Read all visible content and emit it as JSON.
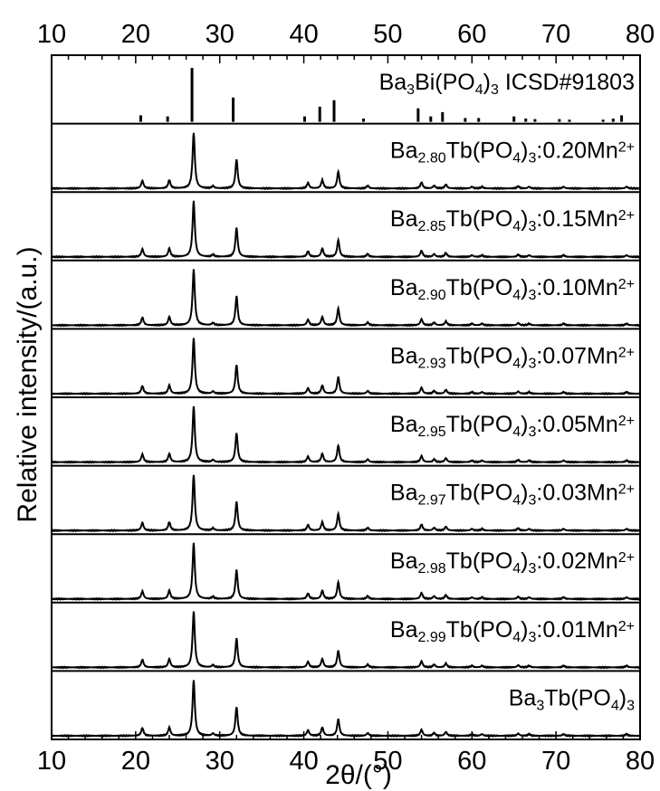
{
  "chart_data": {
    "type": "line",
    "xlabel": "2θ/(°)",
    "ylabel": "Relative intensity/(a.u.)",
    "xlim": [
      10,
      80
    ],
    "x_ticks": [
      "10",
      "20",
      "30",
      "40",
      "50",
      "60",
      "70",
      "80"
    ],
    "grid": false,
    "reference": {
      "name": "Ba3Bi(PO4)3 ICSD#91803",
      "label_parts": [
        [
          "Ba",
          ""
        ],
        [
          "3",
          "sub"
        ],
        [
          "Bi(PO",
          ""
        ],
        [
          "4",
          "sub"
        ],
        [
          ")",
          ""
        ],
        [
          "3",
          "sub"
        ],
        [
          " ICSD#91803",
          ""
        ]
      ],
      "sticks": [
        {
          "x": 20.6,
          "y": 0.12
        },
        {
          "x": 23.8,
          "y": 0.1
        },
        {
          "x": 26.7,
          "y": 1.0
        },
        {
          "x": 31.6,
          "y": 0.45
        },
        {
          "x": 40.1,
          "y": 0.1
        },
        {
          "x": 41.9,
          "y": 0.28
        },
        {
          "x": 43.6,
          "y": 0.4
        },
        {
          "x": 47.1,
          "y": 0.06
        },
        {
          "x": 53.6,
          "y": 0.25
        },
        {
          "x": 55.1,
          "y": 0.1
        },
        {
          "x": 56.5,
          "y": 0.18
        },
        {
          "x": 59.2,
          "y": 0.07
        },
        {
          "x": 60.8,
          "y": 0.07
        },
        {
          "x": 65.0,
          "y": 0.1
        },
        {
          "x": 66.4,
          "y": 0.06
        },
        {
          "x": 67.5,
          "y": 0.05
        },
        {
          "x": 70.4,
          "y": 0.05
        },
        {
          "x": 71.6,
          "y": 0.04
        },
        {
          "x": 75.6,
          "y": 0.04
        },
        {
          "x": 76.8,
          "y": 0.06
        },
        {
          "x": 77.8,
          "y": 0.12
        }
      ]
    },
    "peaks": [
      {
        "x": 20.8,
        "h": 0.14
      },
      {
        "x": 24.0,
        "h": 0.15
      },
      {
        "x": 26.9,
        "h": 1.0
      },
      {
        "x": 29.2,
        "h": 0.04
      },
      {
        "x": 32.0,
        "h": 0.52
      },
      {
        "x": 40.5,
        "h": 0.1
      },
      {
        "x": 42.2,
        "h": 0.15
      },
      {
        "x": 44.1,
        "h": 0.3
      },
      {
        "x": 47.6,
        "h": 0.05
      },
      {
        "x": 54.0,
        "h": 0.11
      },
      {
        "x": 55.5,
        "h": 0.05
      },
      {
        "x": 56.9,
        "h": 0.07
      },
      {
        "x": 60.0,
        "h": 0.03
      },
      {
        "x": 61.2,
        "h": 0.03
      },
      {
        "x": 65.5,
        "h": 0.04
      },
      {
        "x": 66.8,
        "h": 0.03
      },
      {
        "x": 70.9,
        "h": 0.03
      },
      {
        "x": 78.4,
        "h": 0.03
      }
    ],
    "series": [
      {
        "name": "Ba2.80Tb(PO4)3:0.20Mn2+",
        "label_parts": [
          [
            "Ba",
            ""
          ],
          [
            "2.80",
            "sub"
          ],
          [
            "Tb(PO",
            ""
          ],
          [
            "4",
            "sub"
          ],
          [
            ")",
            ""
          ],
          [
            "3",
            "sub"
          ],
          [
            ":0.20Mn",
            ""
          ],
          [
            "2+",
            "sup"
          ]
        ]
      },
      {
        "name": "Ba2.85Tb(PO4)3:0.15Mn2+",
        "label_parts": [
          [
            "Ba",
            ""
          ],
          [
            "2.85",
            "sub"
          ],
          [
            "Tb(PO",
            ""
          ],
          [
            "4",
            "sub"
          ],
          [
            ")",
            ""
          ],
          [
            "3",
            "sub"
          ],
          [
            ":0.15Mn",
            ""
          ],
          [
            "2+",
            "sup"
          ]
        ]
      },
      {
        "name": "Ba2.90Tb(PO4)3:0.10Mn2+",
        "label_parts": [
          [
            "Ba",
            ""
          ],
          [
            "2.90",
            "sub"
          ],
          [
            "Tb(PO",
            ""
          ],
          [
            "4",
            "sub"
          ],
          [
            ")",
            ""
          ],
          [
            "3",
            "sub"
          ],
          [
            ":0.10Mn",
            ""
          ],
          [
            "2+",
            "sup"
          ]
        ]
      },
      {
        "name": "Ba2.93Tb(PO4)3:0.07Mn2+",
        "label_parts": [
          [
            "Ba",
            ""
          ],
          [
            "2.93",
            "sub"
          ],
          [
            "Tb(PO",
            ""
          ],
          [
            "4",
            "sub"
          ],
          [
            ")",
            ""
          ],
          [
            "3",
            "sub"
          ],
          [
            ":0.07Mn",
            ""
          ],
          [
            "2+",
            "sup"
          ]
        ]
      },
      {
        "name": "Ba2.95Tb(PO4)3:0.05Mn2+",
        "label_parts": [
          [
            "Ba",
            ""
          ],
          [
            "2.95",
            "sub"
          ],
          [
            "Tb(PO",
            ""
          ],
          [
            "4",
            "sub"
          ],
          [
            ")",
            ""
          ],
          [
            "3",
            "sub"
          ],
          [
            ":0.05Mn",
            ""
          ],
          [
            "2+",
            "sup"
          ]
        ]
      },
      {
        "name": "Ba2.97Tb(PO4)3:0.03Mn2+",
        "label_parts": [
          [
            "Ba",
            ""
          ],
          [
            "2.97",
            "sub"
          ],
          [
            "Tb(PO",
            ""
          ],
          [
            "4",
            "sub"
          ],
          [
            ")",
            ""
          ],
          [
            "3",
            "sub"
          ],
          [
            ":0.03Mn",
            ""
          ],
          [
            "2+",
            "sup"
          ]
        ]
      },
      {
        "name": "Ba2.98Tb(PO4)3:0.02Mn2+",
        "label_parts": [
          [
            "Ba",
            ""
          ],
          [
            "2.98",
            "sub"
          ],
          [
            "Tb(PO",
            ""
          ],
          [
            "4",
            "sub"
          ],
          [
            ")",
            ""
          ],
          [
            "3",
            "sub"
          ],
          [
            ":0.02Mn",
            ""
          ],
          [
            "2+",
            "sup"
          ]
        ]
      },
      {
        "name": "Ba2.99Tb(PO4)3:0.01Mn2+",
        "label_parts": [
          [
            "Ba",
            ""
          ],
          [
            "2.99",
            "sub"
          ],
          [
            "Tb(PO",
            ""
          ],
          [
            "4",
            "sub"
          ],
          [
            ")",
            ""
          ],
          [
            "3",
            "sub"
          ],
          [
            ":0.01Mn",
            ""
          ],
          [
            "2+",
            "sup"
          ]
        ]
      },
      {
        "name": "Ba3Tb(PO4)3",
        "label_parts": [
          [
            "Ba",
            ""
          ],
          [
            "3",
            "sub"
          ],
          [
            "Tb(PO",
            ""
          ],
          [
            "4",
            "sub"
          ],
          [
            ")",
            ""
          ],
          [
            "3",
            "sub"
          ]
        ]
      }
    ],
    "colors": {
      "line": "#000000",
      "background": "#ffffff"
    }
  }
}
